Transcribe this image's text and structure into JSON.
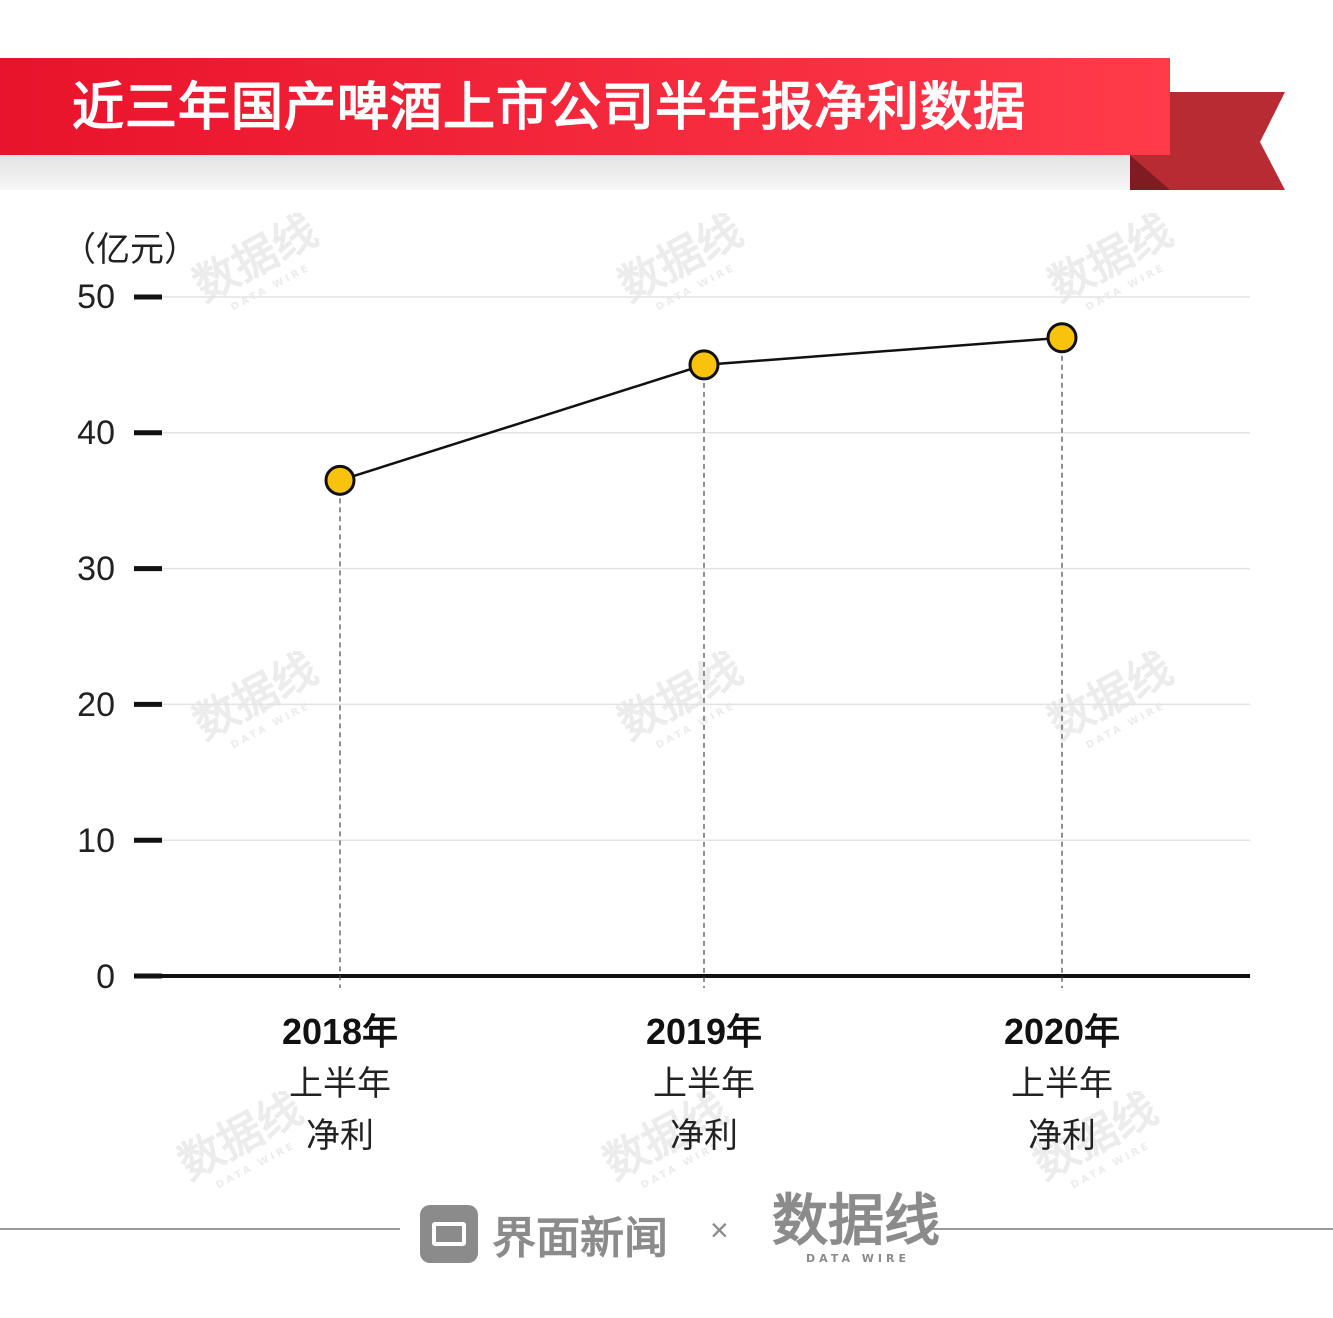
{
  "title": "近三年国产啤酒上市公司半年报净利数据",
  "unit_label": "（亿元）",
  "footer": {
    "brand_primary": "界面新闻",
    "separator": "×",
    "brand_secondary": "数据线",
    "brand_secondary_sub": "DATA WIRE"
  },
  "colors": {
    "banner": "#e8132c",
    "ribbon_dark": "#b82b33",
    "marker_fill": "#f9c20c",
    "line": "#111111"
  },
  "chart_data": {
    "type": "line",
    "title": "近三年国产啤酒上市公司半年报净利数据",
    "ylabel": "（亿元）",
    "xlabel": "",
    "ylim": [
      0,
      50
    ],
    "yticks": [
      "0",
      "10",
      "20",
      "30",
      "40",
      "50"
    ],
    "grid": true,
    "categories": [
      {
        "year": "2018年",
        "line1": "上半年",
        "line2": "净利"
      },
      {
        "year": "2019年",
        "line1": "上半年",
        "line2": "净利"
      },
      {
        "year": "2020年",
        "line1": "上半年",
        "line2": "净利"
      }
    ],
    "values": [
      36.5,
      45,
      47
    ]
  }
}
